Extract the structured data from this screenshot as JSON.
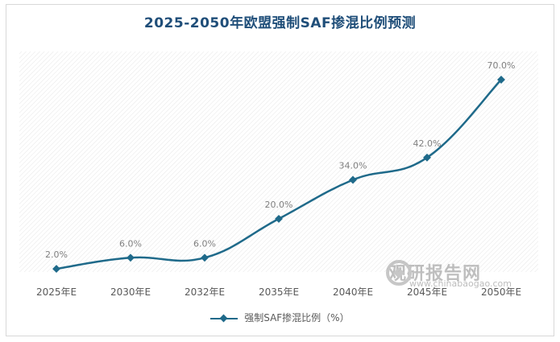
{
  "chart_data": {
    "type": "line",
    "title": "2025-2050年欧盟强制SAF掺混比例预测",
    "categories": [
      "2025年E",
      "2030年E",
      "2032年E",
      "2035年E",
      "2040年E",
      "2045年E",
      "2050年E"
    ],
    "series": [
      {
        "name": "强制SAF掺混比例（%）",
        "values": [
          2.0,
          6.0,
          6.0,
          20.0,
          34.0,
          42.0,
          70.0
        ],
        "labels": [
          "2.0%",
          "6.0%",
          "6.0%",
          "20.0%",
          "34.0%",
          "42.0%",
          "70.0%"
        ],
        "color": "#1f6a8a"
      }
    ],
    "ylim": [
      0,
      70
    ],
    "grid": false,
    "legend_position": "bottom"
  },
  "watermark": {
    "brand": "观研报告网",
    "url": "www.chinabaogao.com"
  }
}
